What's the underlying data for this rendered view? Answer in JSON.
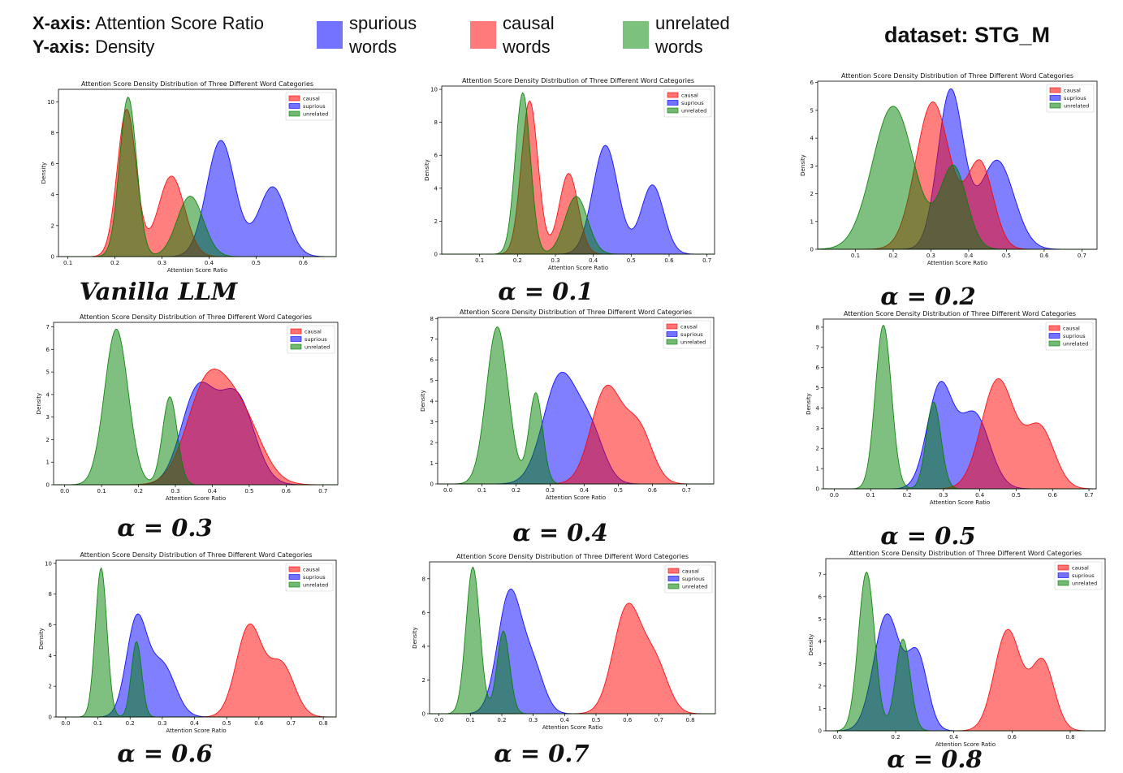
{
  "header": {
    "x_axis_label": "X-axis:",
    "x_axis_value": "Attention Score Ratio",
    "y_axis_label": "Y-axis:",
    "y_axis_value": "Density",
    "legend": [
      {
        "line1": "spurious",
        "line2": "words",
        "color": "#7373ff"
      },
      {
        "line1": "causal",
        "line2": "words",
        "color": "#ff7b7b"
      },
      {
        "line1": "unrelated",
        "line2": "words",
        "color": "#7cc27c"
      }
    ],
    "dataset": "dataset: STG_M"
  },
  "chart_data": [
    {
      "type": "area",
      "caption": "Vanilla LLM",
      "title": "Attention Score Density Distribution of Three Different Word Categories",
      "xlabel": "Attention Score Ratio",
      "ylabel": "Density",
      "xlim": [
        0.08,
        0.67
      ],
      "ylim": [
        0,
        10.8
      ],
      "xticks": [
        "0.1",
        "0.2",
        "0.3",
        "0.4",
        "0.5",
        "0.6"
      ],
      "xtick_values": [
        0.1,
        0.2,
        0.3,
        0.4,
        0.5,
        0.6
      ],
      "yticks": [
        "0",
        "2",
        "4",
        "6",
        "8",
        "10"
      ],
      "ytick_values": [
        0,
        2,
        4,
        6,
        8,
        10
      ],
      "legend_labels": [
        "causal",
        "suprious",
        "unrelated"
      ],
      "series": [
        {
          "name": "causal",
          "color": "#ff0000",
          "peaks": [
            [
              0.225,
              9.5,
              0.02
            ],
            [
              0.32,
              5.2,
              0.028
            ]
          ]
        },
        {
          "name": "suprious",
          "color": "#0000ff",
          "peaks": [
            [
              0.425,
              7.5,
              0.03
            ],
            [
              0.535,
              4.5,
              0.03
            ]
          ]
        },
        {
          "name": "unrelated",
          "color": "#008000",
          "peaks": [
            [
              0.228,
              10.3,
              0.018
            ],
            [
              0.36,
              3.9,
              0.028
            ]
          ]
        }
      ]
    },
    {
      "type": "area",
      "caption": "α = 0.1",
      "title": "Attention Score Density Distribution of Three Different Word Categories",
      "xlabel": "Attention Score Ratio",
      "ylabel": "Density",
      "xlim": [
        0.0,
        0.72
      ],
      "ylim": [
        0,
        10.2
      ],
      "xticks": [
        "0.1",
        "0.2",
        "0.3",
        "0.4",
        "0.5",
        "0.6",
        "0.7"
      ],
      "xtick_values": [
        0.1,
        0.2,
        0.3,
        0.4,
        0.5,
        0.6,
        0.7
      ],
      "yticks": [
        "0",
        "2",
        "4",
        "6",
        "8",
        "10"
      ],
      "ytick_values": [
        0,
        2,
        4,
        6,
        8,
        10
      ],
      "legend_labels": [
        "causal",
        "suprious",
        "unrelated"
      ],
      "series": [
        {
          "name": "causal",
          "color": "#ff0000",
          "peaks": [
            [
              0.232,
              9.3,
              0.022
            ],
            [
              0.335,
              4.9,
              0.025
            ]
          ]
        },
        {
          "name": "suprious",
          "color": "#0000ff",
          "peaks": [
            [
              0.432,
              6.6,
              0.033
            ],
            [
              0.556,
              4.2,
              0.03
            ]
          ]
        },
        {
          "name": "unrelated",
          "color": "#008000",
          "peaks": [
            [
              0.214,
              9.8,
              0.02
            ],
            [
              0.355,
              3.5,
              0.03
            ]
          ]
        }
      ]
    },
    {
      "type": "area",
      "caption": "α = 0.2",
      "title": "Attention Score Density Distribution of Three Different Word Categories",
      "xlabel": "Attention Score Ratio",
      "ylabel": "Density",
      "xlim": [
        0.0,
        0.74
      ],
      "ylim": [
        0,
        6.05
      ],
      "xticks": [
        "0.1",
        "0.2",
        "0.3",
        "0.4",
        "0.5",
        "0.6",
        "0.7"
      ],
      "xtick_values": [
        0.1,
        0.2,
        0.3,
        0.4,
        0.5,
        0.6,
        0.7
      ],
      "yticks": [
        "0",
        "1",
        "2",
        "3",
        "4",
        "5",
        "6"
      ],
      "ytick_values": [
        0,
        1,
        2,
        3,
        4,
        5,
        6
      ],
      "legend_labels": [
        "causal",
        "suprious",
        "unrelated"
      ],
      "series": [
        {
          "name": "causal",
          "color": "#ff0000",
          "peaks": [
            [
              0.305,
              5.3,
              0.045
            ],
            [
              0.43,
              3.1,
              0.035
            ]
          ]
        },
        {
          "name": "suprious",
          "color": "#0000ff",
          "peaks": [
            [
              0.352,
              5.7,
              0.034
            ],
            [
              0.475,
              3.2,
              0.045
            ]
          ]
        },
        {
          "name": "unrelated",
          "color": "#008000",
          "peaks": [
            [
              0.2,
              5.15,
              0.055
            ],
            [
              0.36,
              2.95,
              0.035
            ]
          ]
        }
      ]
    },
    {
      "type": "area",
      "caption": "α = 0.3",
      "title": "Attention Score Density Distribution of Three Different Word Categories",
      "xlabel": "Attention Score Ratio",
      "ylabel": "Density",
      "xlim": [
        -0.03,
        0.74
      ],
      "ylim": [
        0,
        7.2
      ],
      "xticks": [
        "0.0",
        "0.1",
        "0.2",
        "0.3",
        "0.4",
        "0.5",
        "0.6",
        "0.7"
      ],
      "xtick_values": [
        0.0,
        0.1,
        0.2,
        0.3,
        0.4,
        0.5,
        0.6,
        0.7
      ],
      "yticks": [
        "0",
        "1",
        "2",
        "3",
        "4",
        "5",
        "6",
        "7"
      ],
      "ytick_values": [
        0,
        1,
        2,
        3,
        4,
        5,
        6,
        7
      ],
      "legend_labels": [
        "causal",
        "suprious",
        "unrelated"
      ],
      "series": [
        {
          "name": "causal",
          "color": "#ff0000",
          "peaks": [
            [
              0.385,
              4.3,
              0.055
            ],
            [
              0.48,
              2.8,
              0.055
            ]
          ]
        },
        {
          "name": "suprious",
          "color": "#0000ff",
          "peaks": [
            [
              0.36,
              4.1,
              0.045
            ],
            [
              0.465,
              3.9,
              0.048
            ]
          ]
        },
        {
          "name": "unrelated",
          "color": "#008000",
          "peaks": [
            [
              0.14,
              6.9,
              0.032
            ],
            [
              0.285,
              3.9,
              0.02
            ]
          ]
        }
      ]
    },
    {
      "type": "area",
      "caption": "α = 0.4",
      "title": "Attention Score Density Distribution of Three Different Word Categories",
      "xlabel": "Attention Score Ratio",
      "ylabel": "Density",
      "xlim": [
        -0.03,
        0.78
      ],
      "ylim": [
        0,
        8.05
      ],
      "xticks": [
        "0.0",
        "0.1",
        "0.2",
        "0.3",
        "0.4",
        "0.5",
        "0.6",
        "0.7"
      ],
      "xtick_values": [
        0.0,
        0.1,
        0.2,
        0.3,
        0.4,
        0.5,
        0.6,
        0.7
      ],
      "yticks": [
        "0",
        "1",
        "2",
        "3",
        "4",
        "5",
        "6",
        "7",
        "8"
      ],
      "ytick_values": [
        0,
        1,
        2,
        3,
        4,
        5,
        6,
        7,
        8
      ],
      "legend_labels": [
        "causal",
        "suprious",
        "unrelated"
      ],
      "series": [
        {
          "name": "causal",
          "color": "#ff0000",
          "peaks": [
            [
              0.465,
              4.6,
              0.045
            ],
            [
              0.56,
              2.6,
              0.04
            ]
          ]
        },
        {
          "name": "suprious",
          "color": "#0000ff",
          "peaks": [
            [
              0.33,
              5.2,
              0.05
            ],
            [
              0.42,
              2.2,
              0.04
            ]
          ]
        },
        {
          "name": "unrelated",
          "color": "#008000",
          "peaks": [
            [
              0.145,
              7.6,
              0.032
            ],
            [
              0.258,
              4.4,
              0.02
            ]
          ]
        }
      ]
    },
    {
      "type": "area",
      "caption": "α = 0.5",
      "title": "Attention Score Density Distribution of Three Different Word Categories",
      "xlabel": "Attention Score Ratio",
      "ylabel": "Density",
      "xlim": [
        -0.03,
        0.72
      ],
      "ylim": [
        0,
        8.4
      ],
      "xticks": [
        "0.0",
        "0.1",
        "0.2",
        "0.3",
        "0.4",
        "0.5",
        "0.6",
        "0.7"
      ],
      "xtick_values": [
        0.0,
        0.1,
        0.2,
        0.3,
        0.4,
        0.5,
        0.6,
        0.7
      ],
      "yticks": [
        "0",
        "1",
        "2",
        "3",
        "4",
        "5",
        "6",
        "7",
        "8"
      ],
      "ytick_values": [
        0,
        1,
        2,
        3,
        4,
        5,
        6,
        7,
        8
      ],
      "legend_labels": [
        "causal",
        "suprious",
        "unrelated"
      ],
      "series": [
        {
          "name": "causal",
          "color": "#ff0000",
          "peaks": [
            [
              0.45,
              5.4,
              0.045
            ],
            [
              0.565,
              3.0,
              0.04
            ]
          ]
        },
        {
          "name": "suprious",
          "color": "#0000ff",
          "peaks": [
            [
              0.29,
              5.0,
              0.035
            ],
            [
              0.385,
              3.7,
              0.042
            ]
          ]
        },
        {
          "name": "unrelated",
          "color": "#008000",
          "peaks": [
            [
              0.135,
              8.1,
              0.022
            ],
            [
              0.273,
              4.3,
              0.02
            ]
          ]
        }
      ]
    },
    {
      "type": "area",
      "caption": "α = 0.6",
      "title": "Attention Score Density Distribution of Three Different Word Categories",
      "xlabel": "Attention Score Ratio",
      "ylabel": "Density",
      "xlim": [
        -0.03,
        0.84
      ],
      "ylim": [
        0,
        10.2
      ],
      "xticks": [
        "0.0",
        "0.1",
        "0.2",
        "0.3",
        "0.4",
        "0.5",
        "0.6",
        "0.7",
        "0.8"
      ],
      "xtick_values": [
        0.0,
        0.1,
        0.2,
        0.3,
        0.4,
        0.5,
        0.6,
        0.7,
        0.8
      ],
      "yticks": [
        "0",
        "2",
        "4",
        "6",
        "8",
        "10"
      ],
      "ytick_values": [
        0,
        2,
        4,
        6,
        8,
        10
      ],
      "legend_labels": [
        "causal",
        "suprious",
        "unrelated"
      ],
      "series": [
        {
          "name": "causal",
          "color": "#ff0000",
          "peaks": [
            [
              0.57,
              5.9,
              0.04
            ],
            [
              0.67,
              3.4,
              0.04
            ]
          ]
        },
        {
          "name": "suprious",
          "color": "#0000ff",
          "peaks": [
            [
              0.22,
              6.2,
              0.032
            ],
            [
              0.3,
              3.4,
              0.04
            ]
          ]
        },
        {
          "name": "unrelated",
          "color": "#008000",
          "peaks": [
            [
              0.11,
              9.7,
              0.018
            ],
            [
              0.22,
              4.9,
              0.016
            ]
          ]
        }
      ]
    },
    {
      "type": "area",
      "caption": "α = 0.7",
      "title": "Attention Score Density Distribution of Three Different Word Categories",
      "xlabel": "Attention Score Ratio",
      "ylabel": "Density",
      "xlim": [
        -0.03,
        0.88
      ],
      "ylim": [
        0,
        9.0
      ],
      "xticks": [
        "0.0",
        "0.1",
        "0.2",
        "0.3",
        "0.4",
        "0.5",
        "0.6",
        "0.7",
        "0.8"
      ],
      "xtick_values": [
        0.0,
        0.1,
        0.2,
        0.3,
        0.4,
        0.5,
        0.6,
        0.7,
        0.8
      ],
      "yticks": [
        "0",
        "2",
        "4",
        "6",
        "8"
      ],
      "ytick_values": [
        0,
        2,
        4,
        6,
        8
      ],
      "legend_labels": [
        "causal",
        "suprious",
        "unrelated"
      ],
      "series": [
        {
          "name": "causal",
          "color": "#ff0000",
          "peaks": [
            [
              0.6,
              6.3,
              0.045
            ],
            [
              0.69,
              2.8,
              0.04
            ]
          ]
        },
        {
          "name": "suprious",
          "color": "#0000ff",
          "peaks": [
            [
              0.225,
              7.1,
              0.038
            ],
            [
              0.3,
              2.6,
              0.035
            ]
          ]
        },
        {
          "name": "unrelated",
          "color": "#008000",
          "peaks": [
            [
              0.108,
              8.7,
              0.022
            ],
            [
              0.205,
              4.9,
              0.02
            ]
          ]
        }
      ]
    },
    {
      "type": "area",
      "caption": "α = 0.8",
      "title": "Attention Score Density Distribution of Three Different Word Categories",
      "xlabel": "Attention Score Ratio",
      "ylabel": "Density",
      "xlim": [
        -0.04,
        0.92
      ],
      "ylim": [
        0,
        7.7
      ],
      "xticks": [
        "0.0",
        "0.2",
        "0.4",
        "0.6",
        "0.8"
      ],
      "xtick_values": [
        0.0,
        0.2,
        0.4,
        0.6,
        0.8
      ],
      "yticks": [
        "0",
        "1",
        "2",
        "3",
        "4",
        "5",
        "6",
        "7"
      ],
      "ytick_values": [
        0,
        1,
        2,
        3,
        4,
        5,
        6,
        7
      ],
      "legend_labels": [
        "causal",
        "suprious",
        "unrelated"
      ],
      "series": [
        {
          "name": "causal",
          "color": "#ff0000",
          "peaks": [
            [
              0.585,
              4.5,
              0.045
            ],
            [
              0.705,
              3.1,
              0.04
            ]
          ]
        },
        {
          "name": "suprious",
          "color": "#0000ff",
          "peaks": [
            [
              0.17,
              5.2,
              0.045
            ],
            [
              0.275,
              3.3,
              0.035
            ]
          ]
        },
        {
          "name": "unrelated",
          "color": "#008000",
          "peaks": [
            [
              0.1,
              7.1,
              0.028
            ],
            [
              0.225,
              4.1,
              0.025
            ]
          ]
        }
      ]
    }
  ]
}
